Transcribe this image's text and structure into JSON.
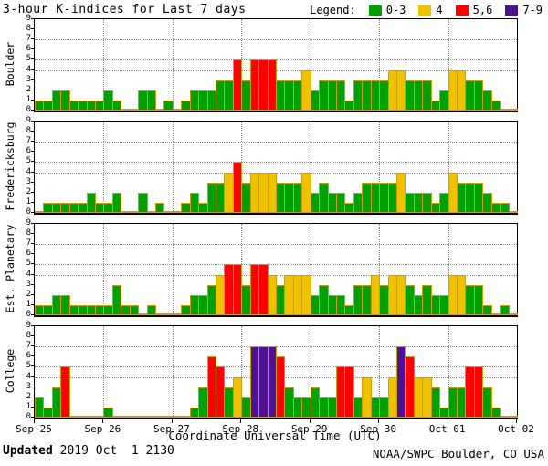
{
  "title": "3-hour K-indices for Last 7 days",
  "legend": {
    "label": "Legend:",
    "items": [
      {
        "label": "0-3",
        "color": "#00A000"
      },
      {
        "label": "4",
        "color": "#EFC100"
      },
      {
        "label": "5,6",
        "color": "#FF0000"
      },
      {
        "label": "7-9",
        "color": "#4D1191"
      }
    ]
  },
  "colors": {
    "k_0_3": "#00A000",
    "k_4": "#EFC100",
    "k_5_6": "#FF0000",
    "k_7_9": "#4D1191",
    "bar_outline": "#C8A200",
    "grid": "#8A8A8A"
  },
  "footer": {
    "updated_label": "Updated",
    "updated_value": " 2019 Oct  1 2130",
    "credit": "NOAA/SWPC Boulder, CO USA"
  },
  "chart_data": {
    "type": "bar",
    "title": "3-hour K-indices for Last 7 days",
    "xlabel": "Coordinate Universal Time (UTC)",
    "x_tick_labels": [
      "Sep 25",
      "Sep 26",
      "Sep 27",
      "Sep 28",
      "Sep 29",
      "Sep 30",
      "Oct 01",
      "Oct 02"
    ],
    "days": 7,
    "bars_per_day": 8,
    "ylim": [
      0,
      9
    ],
    "y_gridlines": [
      4,
      5,
      7
    ],
    "grid": true,
    "legend_position": "top-right",
    "series": [
      {
        "name": "Boulder",
        "values": [
          1,
          1,
          2,
          2,
          1,
          1,
          1,
          1,
          2,
          1,
          0,
          0,
          2,
          2,
          0,
          1,
          0,
          1,
          2,
          2,
          2,
          3,
          3,
          5,
          3,
          5,
          5,
          5,
          3,
          3,
          3,
          4,
          2,
          3,
          3,
          3,
          1,
          3,
          3,
          3,
          3,
          4,
          4,
          3,
          3,
          3,
          1,
          2,
          4,
          4,
          3,
          3,
          2,
          1,
          0,
          0
        ]
      },
      {
        "name": "Fredericksburg",
        "values": [
          0,
          1,
          1,
          1,
          1,
          1,
          2,
          1,
          1,
          2,
          0,
          0,
          2,
          0,
          1,
          0,
          0,
          1,
          2,
          1,
          3,
          3,
          4,
          5,
          3,
          4,
          4,
          4,
          3,
          3,
          3,
          4,
          2,
          3,
          2,
          2,
          1,
          2,
          3,
          3,
          3,
          3,
          4,
          2,
          2,
          2,
          1,
          2,
          4,
          3,
          3,
          3,
          2,
          1,
          1,
          0
        ]
      },
      {
        "name": "Est. Planetary",
        "values": [
          1,
          1,
          2,
          2,
          1,
          1,
          1,
          1,
          1,
          3,
          1,
          1,
          0,
          1,
          0,
          0,
          0,
          1,
          2,
          2,
          3,
          4,
          5,
          5,
          3,
          5,
          5,
          4,
          3,
          4,
          4,
          4,
          2,
          3,
          2,
          2,
          1,
          3,
          3,
          4,
          3,
          4,
          4,
          3,
          2,
          3,
          2,
          2,
          4,
          4,
          3,
          3,
          1,
          0,
          1,
          0
        ]
      },
      {
        "name": "College",
        "values": [
          2,
          1,
          3,
          5,
          0,
          0,
          0,
          0,
          1,
          0,
          0,
          0,
          0,
          0,
          0,
          0,
          0,
          0,
          1,
          3,
          6,
          5,
          3,
          4,
          2,
          7,
          7,
          7,
          6,
          3,
          2,
          2,
          3,
          2,
          2,
          5,
          5,
          2,
          4,
          2,
          2,
          4,
          7,
          6,
          4,
          4,
          3,
          1,
          3,
          3,
          5,
          5,
          3,
          1,
          0,
          0
        ]
      }
    ]
  }
}
